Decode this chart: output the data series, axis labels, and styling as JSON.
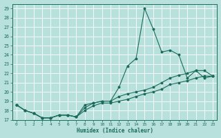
{
  "title": "",
  "xlabel": "Humidex (Indice chaleur)",
  "bg_color": "#b8e0dc",
  "grid_color": "#ffffff",
  "line_color": "#1a6b5a",
  "xlim": [
    -0.5,
    23.5
  ],
  "ylim": [
    17,
    29.5
  ],
  "yticks": [
    17,
    18,
    19,
    20,
    21,
    22,
    23,
    24,
    25,
    26,
    27,
    28,
    29
  ],
  "xticks": [
    0,
    1,
    2,
    3,
    4,
    5,
    6,
    7,
    8,
    9,
    10,
    11,
    12,
    13,
    14,
    15,
    16,
    17,
    18,
    19,
    20,
    21,
    22,
    23
  ],
  "line1_x": [
    0,
    1,
    2,
    3,
    4,
    5,
    6,
    7,
    8,
    9,
    10,
    11,
    12,
    13,
    14,
    15,
    16,
    17,
    18,
    19,
    20,
    21,
    22,
    23
  ],
  "line1_y": [
    18.6,
    18.0,
    17.7,
    17.2,
    17.2,
    17.5,
    17.5,
    17.3,
    18.6,
    18.8,
    19.0,
    19.0,
    20.5,
    22.8,
    23.6,
    29.0,
    26.8,
    24.3,
    24.5,
    24.0,
    21.5,
    22.3,
    21.5,
    21.7
  ],
  "line2_x": [
    0,
    1,
    2,
    3,
    4,
    5,
    6,
    7,
    8,
    9,
    10,
    11,
    12,
    13,
    14,
    15,
    16,
    17,
    18,
    19,
    20,
    21,
    22,
    23
  ],
  "line2_y": [
    18.6,
    18.0,
    17.7,
    17.2,
    17.2,
    17.5,
    17.5,
    17.3,
    18.0,
    18.5,
    18.8,
    18.8,
    19.0,
    19.2,
    19.5,
    19.8,
    20.0,
    20.3,
    20.8,
    21.0,
    21.2,
    21.5,
    21.7,
    21.7
  ],
  "line3_x": [
    0,
    1,
    2,
    3,
    4,
    5,
    6,
    7,
    8,
    9,
    10,
    11,
    12,
    13,
    14,
    15,
    16,
    17,
    18,
    19,
    20,
    21,
    22,
    23
  ],
  "line3_y": [
    18.6,
    18.0,
    17.7,
    17.2,
    17.2,
    17.5,
    17.5,
    17.3,
    18.3,
    18.8,
    19.0,
    19.0,
    19.5,
    19.8,
    20.0,
    20.2,
    20.5,
    21.0,
    21.5,
    21.8,
    22.0,
    22.3,
    22.3,
    21.7
  ]
}
